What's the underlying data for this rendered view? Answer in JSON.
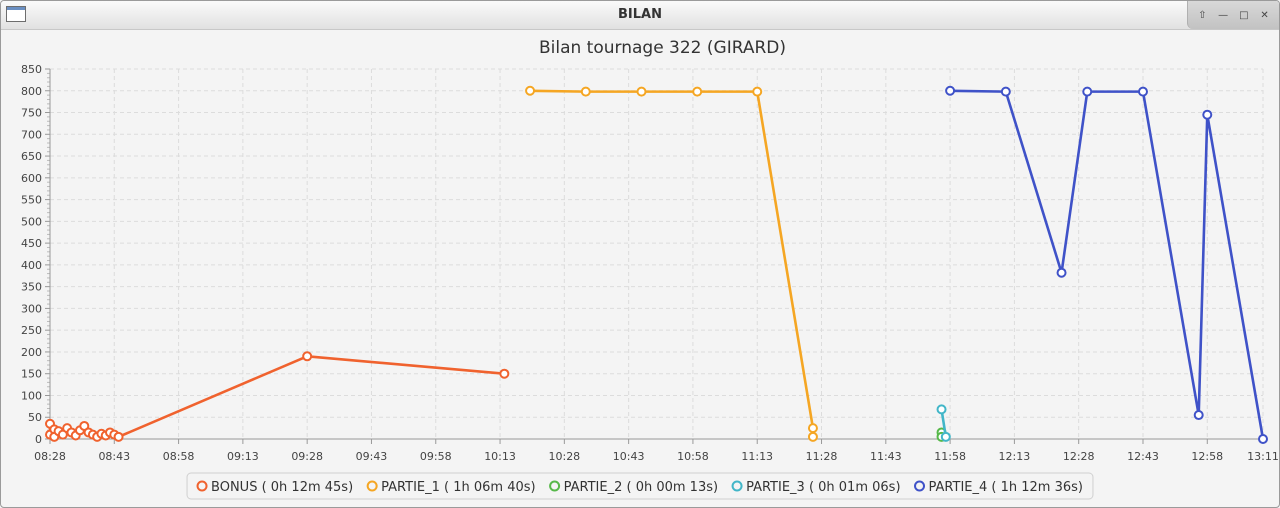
{
  "window": {
    "title": "BILAN",
    "controls": [
      "up-arrow-icon",
      "minimize-icon",
      "maximize-icon",
      "close-icon"
    ]
  },
  "chart_data": {
    "type": "line",
    "title": "Bilan tournage 322 (GIRARD)",
    "xlabel": "",
    "ylabel": "",
    "ylim": [
      0,
      850
    ],
    "yticks": [
      0,
      50,
      100,
      150,
      200,
      250,
      300,
      350,
      400,
      450,
      500,
      550,
      600,
      650,
      700,
      750,
      800,
      850
    ],
    "xlim": [
      "08:28",
      "13:11"
    ],
    "xticks": [
      "08:28",
      "08:43",
      "08:58",
      "09:13",
      "09:28",
      "09:43",
      "09:58",
      "10:13",
      "10:28",
      "10:43",
      "10:58",
      "11:13",
      "11:28",
      "11:43",
      "11:58",
      "12:13",
      "12:28",
      "12:43",
      "12:58",
      "13:11"
    ],
    "grid": true,
    "legend_position": "bottom",
    "series": [
      {
        "name": "BONUS ( 0h 12m 45s)",
        "color": "#f0622e",
        "points": [
          [
            "08:28",
            35
          ],
          [
            "08:28",
            10
          ],
          [
            "08:29",
            22
          ],
          [
            "08:29",
            5
          ],
          [
            "08:30",
            18
          ],
          [
            "08:31",
            10
          ],
          [
            "08:32",
            25
          ],
          [
            "08:33",
            15
          ],
          [
            "08:34",
            8
          ],
          [
            "08:35",
            20
          ],
          [
            "08:36",
            30
          ],
          [
            "08:37",
            15
          ],
          [
            "08:38",
            10
          ],
          [
            "08:39",
            5
          ],
          [
            "08:40",
            12
          ],
          [
            "08:41",
            8
          ],
          [
            "08:42",
            15
          ],
          [
            "08:43",
            10
          ],
          [
            "08:44",
            5
          ],
          [
            "09:28",
            190
          ],
          [
            "10:14",
            150
          ]
        ]
      },
      {
        "name": "PARTIE_1 ( 1h 06m 40s)",
        "color": "#f5a623",
        "points": [
          [
            "10:20",
            800
          ],
          [
            "10:33",
            798
          ],
          [
            "10:46",
            798
          ],
          [
            "10:59",
            798
          ],
          [
            "11:13",
            798
          ],
          [
            "11:26",
            25
          ],
          [
            "11:26",
            5
          ]
        ]
      },
      {
        "name": "PARTIE_2 ( 0h 00m 13s)",
        "color": "#57b84a",
        "points": [
          [
            "11:56",
            15
          ],
          [
            "11:56",
            5
          ]
        ]
      },
      {
        "name": "PARTIE_3 ( 0h 01m 06s)",
        "color": "#42b6c8",
        "points": [
          [
            "11:56",
            68
          ],
          [
            "11:57",
            5
          ]
        ]
      },
      {
        "name": "PARTIE_4 ( 1h 12m 36s)",
        "color": "#3f52c8",
        "points": [
          [
            "11:58",
            800
          ],
          [
            "12:11",
            798
          ],
          [
            "12:24",
            382
          ],
          [
            "12:30",
            798
          ],
          [
            "12:43",
            798
          ],
          [
            "12:56",
            55
          ],
          [
            "12:58",
            745
          ],
          [
            "13:11",
            0
          ]
        ]
      }
    ]
  }
}
